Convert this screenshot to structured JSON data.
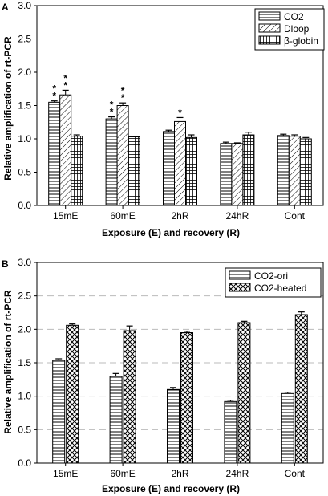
{
  "chart_data": [
    {
      "type": "bar",
      "panel_label": "A",
      "categories": [
        "15mE",
        "60mE",
        "2hR",
        "24hR",
        "Cont"
      ],
      "series": [
        {
          "name": "CO2",
          "pattern": "hlines",
          "values": [
            1.55,
            1.3,
            1.11,
            0.93,
            1.05
          ],
          "errors": [
            0.02,
            0.03,
            0.02,
            0.02,
            0.02
          ]
        },
        {
          "name": "Dloop",
          "pattern": "diagonal",
          "values": [
            1.66,
            1.5,
            1.26,
            0.93,
            1.04
          ],
          "errors": [
            0.07,
            0.04,
            0.06,
            0.01,
            0.02
          ]
        },
        {
          "name": "β-globin",
          "pattern": "grid",
          "values": [
            1.04,
            1.03,
            1.02,
            1.06,
            1.0
          ],
          "errors": [
            0.02,
            0.01,
            0.04,
            0.04,
            0.02
          ]
        }
      ],
      "significance": [
        {
          "category": "15mE",
          "series": "CO2",
          "marker": "**"
        },
        {
          "category": "15mE",
          "series": "Dloop",
          "marker": "**"
        },
        {
          "category": "60mE",
          "series": "CO2",
          "marker": "**"
        },
        {
          "category": "60mE",
          "series": "Dloop",
          "marker": "**"
        },
        {
          "category": "2hR",
          "series": "Dloop",
          "marker": "*"
        }
      ],
      "xlabel": "Exposure (E) and recovery (R)",
      "ylabel": "Relative amplification of rt-PCR",
      "ylim": [
        0,
        3.0
      ],
      "yticks": [
        "0.0",
        "0.5",
        "1.0",
        "1.5",
        "2.0",
        "2.5",
        "3.0"
      ],
      "grid": false,
      "legend_position": "top-right"
    },
    {
      "type": "bar",
      "panel_label": "B",
      "categories": [
        "15mE",
        "60mE",
        "2hR",
        "24hR",
        "Cont"
      ],
      "series": [
        {
          "name": "CO2-ori",
          "pattern": "hlines",
          "values": [
            1.54,
            1.3,
            1.1,
            0.92,
            1.04
          ],
          "errors": [
            0.02,
            0.04,
            0.03,
            0.02,
            0.02
          ]
        },
        {
          "name": "CO2-heated",
          "pattern": "crosshatch",
          "values": [
            2.06,
            1.98,
            1.95,
            2.1,
            2.22
          ],
          "errors": [
            0.02,
            0.07,
            0.02,
            0.02,
            0.04
          ]
        }
      ],
      "xlabel": "Exposure (E) and recovery (R)",
      "ylabel": "Relative amplification of rt-PCR",
      "ylim": [
        0,
        3.0
      ],
      "yticks": [
        "0.0",
        "0.5",
        "1.0",
        "1.5",
        "2.0",
        "2.5",
        "3.0"
      ],
      "grid": true,
      "legend_position": "top-right"
    }
  ]
}
